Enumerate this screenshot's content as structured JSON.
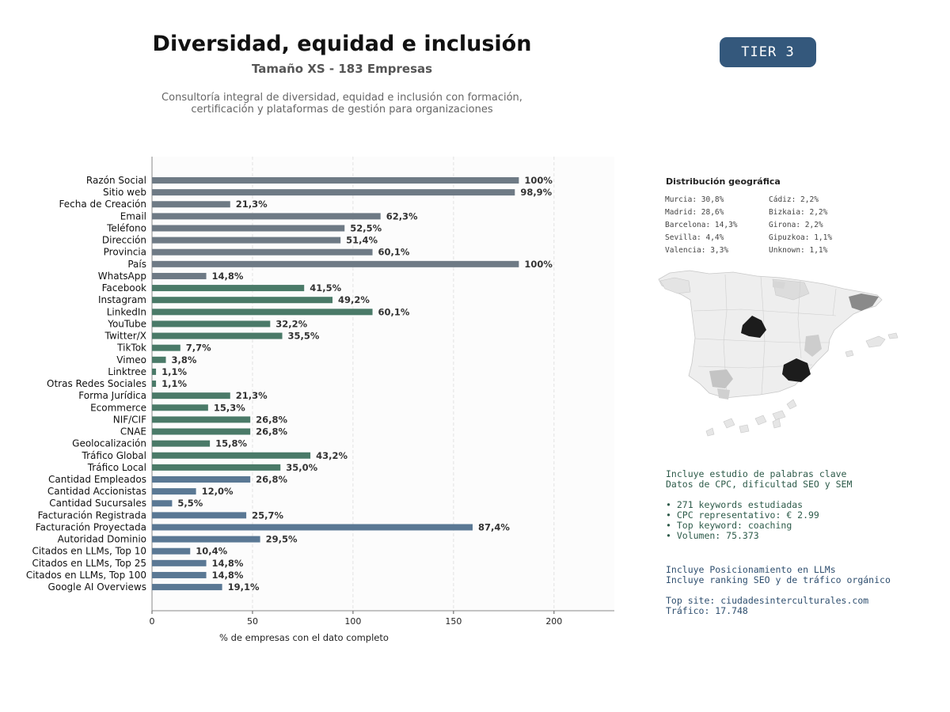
{
  "header": {
    "title": "Diversidad, equidad e inclusión",
    "subtitle": "Tamaño XS - 183 Empresas",
    "description_line1": "Consultoría integral de diversidad, equidad e inclusión con formación,",
    "description_line2": "certificación y plataformas de gestión para organizaciones",
    "tier": "TIER 3"
  },
  "chart_data": {
    "type": "bar",
    "orientation": "horizontal",
    "xlabel": "% de empresas con el dato completo",
    "xlim": [
      0,
      230
    ],
    "xticks": [
      0,
      50,
      100,
      150,
      200
    ],
    "grid": "vertical dashed",
    "categories": [
      "Razón Social",
      "Sitio web",
      "Fecha de Creación",
      "Email",
      "Teléfono",
      "Dirección",
      "Provincia",
      "País",
      "WhatsApp",
      "Facebook",
      "Instagram",
      "LinkedIn",
      "YouTube",
      "Twitter/X",
      "TikTok",
      "Vimeo",
      "Linktree",
      "Otras Redes Sociales",
      "Forma Jurídica",
      "Ecommerce",
      "NIF/CIF",
      "CNAE",
      "Geolocalización",
      "Tráfico Global",
      "Tráfico Local",
      "Cantidad Empleados",
      "Cantidad Accionistas",
      "Cantidad Sucursales",
      "Facturación Registrada",
      "Facturación Proyectada",
      "Autoridad Dominio",
      "Citados en LLMs, Top 10",
      "Citados en LLMs, Top 25",
      "Citados en LLMs, Top 100",
      "Google AI Overviews"
    ],
    "values": [
      182.5,
      180.5,
      38.9,
      113.7,
      95.8,
      93.8,
      109.7,
      182.5,
      27.0,
      75.7,
      89.8,
      109.7,
      58.8,
      64.8,
      14.1,
      6.9,
      2.0,
      2.0,
      38.9,
      27.9,
      48.9,
      48.9,
      28.8,
      78.8,
      63.9,
      48.9,
      21.9,
      10.0,
      46.9,
      159.5,
      53.8,
      19.0,
      27.0,
      27.0,
      34.9
    ],
    "labels": [
      "100%",
      "98,9%",
      "21,3%",
      "62,3%",
      "52,5%",
      "51,4%",
      "60,1%",
      "100%",
      "14,8%",
      "41,5%",
      "49,2%",
      "60,1%",
      "32,2%",
      "35,5%",
      "7,7%",
      "3,8%",
      "1,1%",
      "1,1%",
      "21,3%",
      "15,3%",
      "26,8%",
      "26,8%",
      "15,8%",
      "43,2%",
      "35,0%",
      "26,8%",
      "12,0%",
      "5,5%",
      "25,7%",
      "87,4%",
      "29,5%",
      "10,4%",
      "14,8%",
      "14,8%",
      "19,1%"
    ],
    "groups": [
      "basic",
      "basic",
      "basic",
      "basic",
      "basic",
      "basic",
      "basic",
      "basic",
      "basic",
      "social",
      "social",
      "social",
      "social",
      "social",
      "social",
      "social",
      "social",
      "social",
      "social",
      "social",
      "social",
      "social",
      "social",
      "social",
      "social",
      "business",
      "business",
      "business",
      "business",
      "business",
      "business",
      "business",
      "business",
      "business",
      "business"
    ],
    "group_colors": {
      "basic": "#6e7a85",
      "social": "#4a7a68",
      "business": "#5a7894"
    }
  },
  "geo": {
    "title": "Distribución geográfica",
    "items": [
      "Murcia: 30,8%",
      "Cádiz: 2,2%",
      "Madrid: 28,6%",
      "Bizkaia: 2,2%",
      "Barcelona: 14,3%",
      "Girona: 2,2%",
      "Sevilla: 4,4%",
      "Gipuzkoa: 1,1%",
      "Valencia: 3,3%",
      "Unknown: 1,1%"
    ],
    "map_icon": "spain-provinces-map"
  },
  "seo": {
    "line1": "Incluye estudio de palabras clave",
    "line2": "Datos de CPC, dificultad SEO y SEM",
    "bullet1": "• 271 keywords estudiadas",
    "bullet2": "• CPC representativo: € 2.99",
    "bullet3": "• Top keyword: coaching",
    "bullet4": "• Volumen: 75.373"
  },
  "llm": {
    "line1": "Incluye Posicionamiento en LLMs",
    "line2": "Incluye ranking SEO y de tráfico orgánico",
    "line3": "Top site: ciudadesinterculturales.com",
    "line4": "Tráfico: 17.748"
  }
}
